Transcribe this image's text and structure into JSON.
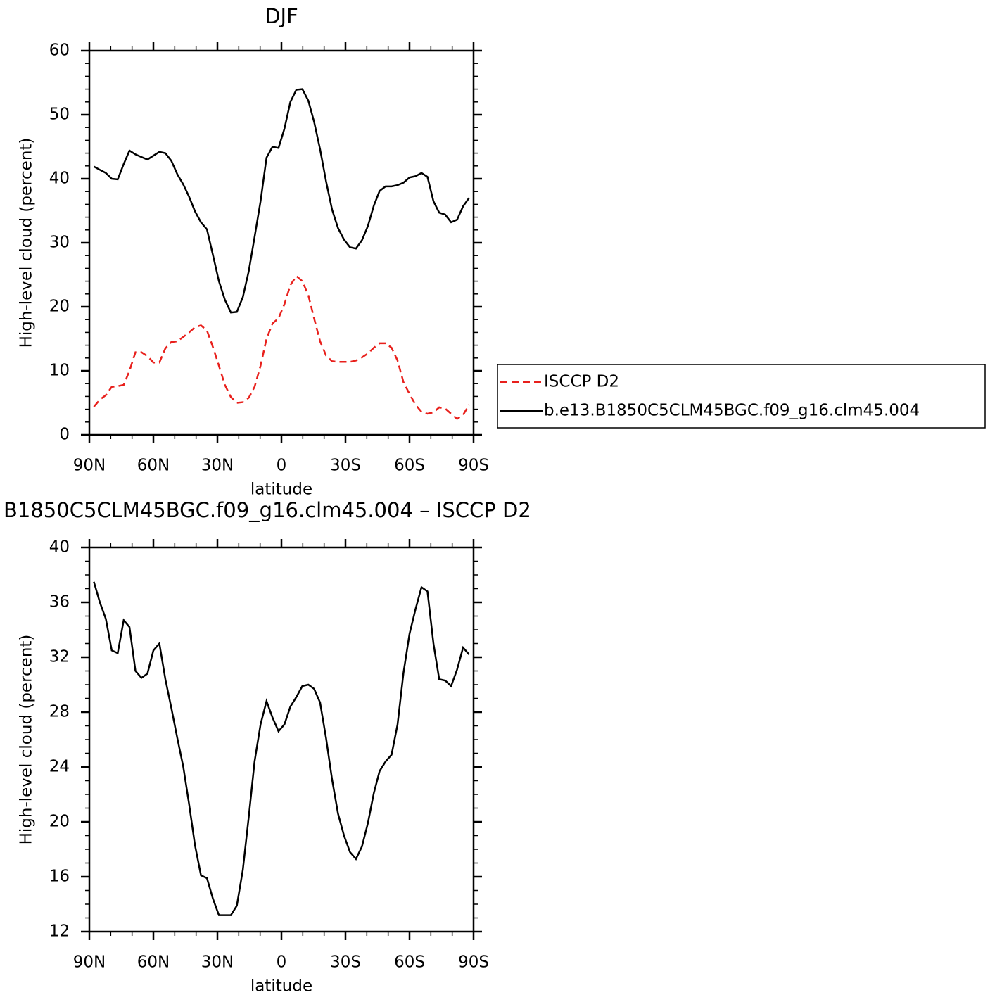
{
  "chart_data": [
    {
      "type": "line",
      "title": "DJF",
      "xlabel": "latitude",
      "ylabel": "High-level cloud (percent)",
      "x": [
        87.9,
        85.1,
        82.3,
        79.5,
        76.7,
        73.9,
        71.2,
        68.4,
        65.6,
        62.8,
        60.0,
        57.2,
        54.4,
        51.6,
        48.8,
        46.0,
        43.3,
        40.5,
        37.7,
        34.9,
        32.1,
        29.3,
        26.5,
        23.7,
        20.9,
        18.1,
        15.3,
        12.6,
        9.8,
        7.0,
        4.2,
        1.4,
        -1.4,
        -4.2,
        -7.0,
        -9.8,
        -12.6,
        -15.3,
        -18.1,
        -20.9,
        -23.7,
        -26.5,
        -29.3,
        -32.1,
        -34.9,
        -37.7,
        -40.5,
        -43.3,
        -46.0,
        -48.8,
        -51.6,
        -54.4,
        -57.2,
        -60.0,
        -62.8,
        -65.6,
        -68.4,
        -71.2,
        -73.9,
        -76.7,
        -79.5,
        -82.3,
        -85.1,
        -87.9
      ],
      "series": [
        {
          "name": "ISCCP D2",
          "color": "#e8201c",
          "dash": "dashed",
          "values": [
            4.4,
            5.5,
            6.2,
            7.5,
            7.6,
            7.8,
            10.0,
            12.9,
            12.9,
            12.3,
            11.3,
            11.3,
            13.5,
            14.5,
            14.6,
            15.3,
            16.0,
            16.8,
            17.1,
            16.3,
            13.7,
            10.8,
            7.8,
            5.9,
            5.0,
            5.1,
            5.8,
            7.5,
            10.8,
            15.0,
            17.4,
            18.2,
            20.4,
            23.4,
            24.8,
            24.0,
            21.8,
            18.2,
            14.6,
            12.4,
            11.5,
            11.4,
            11.4,
            11.4,
            11.6,
            12.1,
            12.7,
            13.6,
            14.3,
            14.3,
            13.6,
            11.6,
            8.2,
            6.4,
            4.7,
            3.6,
            3.3,
            3.5,
            4.3,
            4.1,
            3.3,
            2.5,
            3.1,
            4.7
          ]
        },
        {
          "name": "b.e13.B1850C5CLM45BGC.f09_g16.clm45.004",
          "color": "#000000",
          "dash": "solid",
          "values": [
            41.9,
            41.4,
            40.9,
            40.0,
            39.9,
            42.3,
            44.4,
            43.8,
            43.4,
            43.0,
            43.6,
            44.2,
            44.0,
            42.8,
            40.7,
            39.1,
            37.2,
            34.9,
            33.2,
            32.1,
            28.1,
            24.0,
            21.1,
            19.1,
            19.2,
            21.5,
            25.6,
            30.9,
            36.5,
            43.3,
            45.0,
            44.8,
            47.8,
            52.0,
            53.9,
            54.0,
            52.2,
            48.9,
            44.6,
            39.6,
            35.2,
            32.3,
            30.5,
            29.3,
            29.1,
            30.4,
            32.6,
            35.8,
            38.1,
            38.8,
            38.8,
            39.0,
            39.4,
            40.2,
            40.4,
            40.9,
            40.3,
            36.5,
            34.7,
            34.4,
            33.2,
            33.6,
            35.7,
            37.0
          ]
        }
      ],
      "xlim": [
        90,
        -90
      ],
      "xticks": [
        {
          "value": 90,
          "label": "90N"
        },
        {
          "value": 60,
          "label": "60N"
        },
        {
          "value": 30,
          "label": "30N"
        },
        0,
        {
          "value": -30,
          "label": "30S"
        },
        {
          "value": -60,
          "label": "60S"
        },
        {
          "value": -90,
          "label": "90S"
        }
      ],
      "xminorticks": [
        80,
        70,
        50,
        40,
        20,
        10,
        -10,
        -20,
        -40,
        -50,
        -70,
        -80
      ],
      "ylim": [
        0,
        60
      ],
      "yticks": [
        0,
        10,
        20,
        30,
        40,
        50,
        60
      ],
      "yminorticks": [
        2,
        4,
        6,
        8,
        12,
        14,
        16,
        18,
        22,
        24,
        26,
        28,
        32,
        34,
        36,
        38,
        42,
        44,
        46,
        48,
        52,
        54,
        56,
        58
      ],
      "legend": "right"
    },
    {
      "type": "line",
      "title": "B1850C5CLM45BGC.f09_g16.clm45.004 – ISCCP D2",
      "xlabel": "latitude",
      "ylabel": "High-level cloud (percent)",
      "x": [
        87.9,
        85.1,
        82.3,
        79.5,
        76.7,
        73.9,
        71.2,
        68.4,
        65.6,
        62.8,
        60.0,
        57.2,
        54.4,
        51.6,
        48.8,
        46.0,
        43.3,
        40.5,
        37.7,
        34.9,
        32.1,
        29.3,
        26.5,
        23.7,
        20.9,
        18.1,
        15.3,
        12.6,
        9.8,
        7.0,
        4.2,
        1.4,
        -1.4,
        -4.2,
        -7.0,
        -9.8,
        -12.6,
        -15.3,
        -18.1,
        -20.9,
        -23.7,
        -26.5,
        -29.3,
        -32.1,
        -34.9,
        -37.7,
        -40.5,
        -43.3,
        -46.0,
        -48.8,
        -51.6,
        -54.4,
        -57.2,
        -60.0,
        -62.8,
        -65.6,
        -68.4,
        -71.2,
        -73.9,
        -76.7,
        -79.5,
        -82.3,
        -85.1,
        -87.9
      ],
      "series": [
        {
          "color": "#000000",
          "dash": "solid",
          "values": [
            37.5,
            36.0,
            34.8,
            32.5,
            32.3,
            34.7,
            34.2,
            31.0,
            30.5,
            30.8,
            32.5,
            33.0,
            30.4,
            28.3,
            26.1,
            24.0,
            21.3,
            18.3,
            16.1,
            15.9,
            14.4,
            13.2,
            13.2,
            13.2,
            13.9,
            16.5,
            20.4,
            24.4,
            27.1,
            28.8,
            27.6,
            26.6,
            27.1,
            28.4,
            29.1,
            29.9,
            30.0,
            29.7,
            28.7,
            26.1,
            23.1,
            20.6,
            19.0,
            17.8,
            17.3,
            18.2,
            19.9,
            22.1,
            23.7,
            24.4,
            24.9,
            27.1,
            30.9,
            33.7,
            35.5,
            37.1,
            36.8,
            33.0,
            30.4,
            30.3,
            29.9,
            31.1,
            32.7,
            32.2
          ]
        }
      ],
      "xlim": [
        90,
        -90
      ],
      "xticks": [
        {
          "value": 90,
          "label": "90N"
        },
        {
          "value": 60,
          "label": "60N"
        },
        {
          "value": 30,
          "label": "30N"
        },
        0,
        {
          "value": -30,
          "label": "30S"
        },
        {
          "value": -60,
          "label": "60S"
        },
        {
          "value": -90,
          "label": "90S"
        }
      ],
      "xminorticks": [
        80,
        70,
        50,
        40,
        20,
        10,
        -10,
        -20,
        -40,
        -50,
        -70,
        -80
      ],
      "ylim": [
        12,
        40
      ],
      "yticks": [
        12,
        16,
        20,
        24,
        28,
        32,
        36,
        40
      ],
      "yminorticks": [
        13,
        14,
        15,
        17,
        18,
        19,
        21,
        22,
        23,
        25,
        26,
        27,
        29,
        30,
        31,
        33,
        34,
        35,
        37,
        38,
        39
      ]
    }
  ]
}
